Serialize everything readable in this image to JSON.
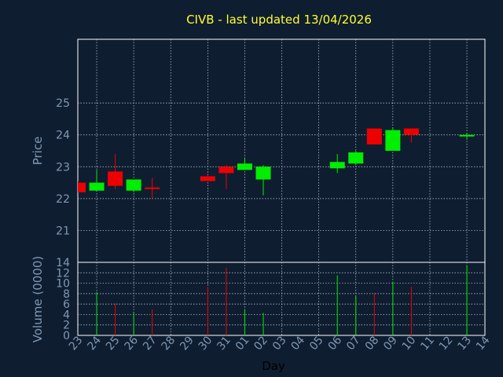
{
  "chart_data": {
    "type": "candlestick",
    "title": "CIVB - last updated 13/04/2026",
    "xlabel": "Day",
    "price_panel": {
      "ylabel": "Price",
      "yticks": [
        "21",
        "22",
        "23",
        "24",
        "25"
      ],
      "ylim": [
        20,
        27
      ]
    },
    "volume_panel": {
      "ylabel": "Volume (0000)",
      "yticks": [
        "0",
        "2",
        "4",
        "6",
        "8",
        "10",
        "12",
        "14"
      ],
      "ylim": [
        0,
        14
      ]
    },
    "x_tick_labels": [
      "23",
      "24",
      "25",
      "26",
      "27",
      "28",
      "29",
      "30",
      "31",
      "01",
      "02",
      "03",
      "04",
      "05",
      "06",
      "07",
      "08",
      "09",
      "10",
      "11",
      "12",
      "13",
      "14"
    ],
    "candles": [
      {
        "day": "23",
        "open": 22.5,
        "high": 22.55,
        "low": 22.2,
        "close": 22.2,
        "volume": null
      },
      {
        "day": "24",
        "open": 22.25,
        "high": 22.9,
        "low": 22.25,
        "close": 22.5,
        "volume": 8.3
      },
      {
        "day": "25",
        "open": 22.85,
        "high": 23.4,
        "low": 22.3,
        "close": 22.4,
        "volume": 6.1
      },
      {
        "day": "26",
        "open": 22.25,
        "high": 22.6,
        "low": 22.2,
        "close": 22.6,
        "volume": 4.4
      },
      {
        "day": "27",
        "open": 22.35,
        "high": 22.65,
        "low": 22.0,
        "close": 22.3,
        "volume": 5.0
      },
      {
        "day": "30",
        "open": 22.7,
        "high": 22.75,
        "low": 22.55,
        "close": 22.55,
        "volume": 9.3
      },
      {
        "day": "31",
        "open": 23.0,
        "high": 23.05,
        "low": 22.3,
        "close": 22.8,
        "volume": 13.0
      },
      {
        "day": "01",
        "open": 22.9,
        "high": 23.25,
        "low": 22.9,
        "close": 23.1,
        "volume": 5.0
      },
      {
        "day": "02",
        "open": 22.6,
        "high": 23.05,
        "low": 22.1,
        "close": 23.0,
        "volume": 4.3
      },
      {
        "day": "06",
        "open": 22.95,
        "high": 23.4,
        "low": 22.8,
        "close": 23.15,
        "volume": 11.5
      },
      {
        "day": "07",
        "open": 23.1,
        "high": 23.5,
        "low": 23.05,
        "close": 23.45,
        "volume": 7.5
      },
      {
        "day": "08",
        "open": 24.2,
        "high": 24.2,
        "low": 23.7,
        "close": 23.7,
        "volume": 8.1
      },
      {
        "day": "09",
        "open": 23.5,
        "high": 24.2,
        "low": 23.5,
        "close": 24.15,
        "volume": 10.3
      },
      {
        "day": "10",
        "open": 24.2,
        "high": 24.2,
        "low": 23.75,
        "close": 24.0,
        "volume": 9.3
      },
      {
        "day": "13",
        "open": 23.95,
        "high": 24.05,
        "low": 23.85,
        "close": 24.0,
        "volume": 13.5
      }
    ]
  },
  "colors": {
    "background": "#0f1d30",
    "plot_frame": "#ffffff",
    "grid": "#c8d2dc",
    "title": "#ffff2e",
    "axis_text": "#7f99b3",
    "up": "#00ee00",
    "down": "#ee0000"
  }
}
